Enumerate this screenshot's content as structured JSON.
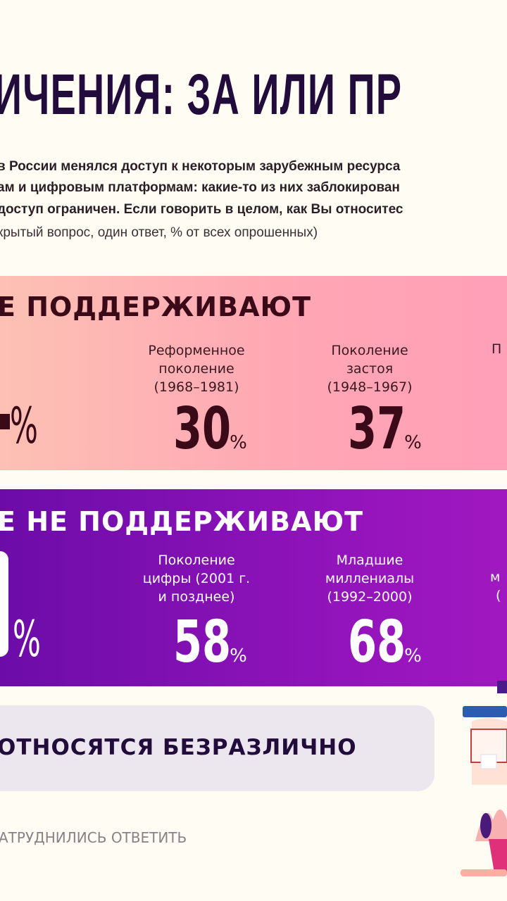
{
  "title": "ИЧЕНИЯ: ЗА ИЛИ ПР",
  "question": {
    "lines": [
      "в России менялся доступ к некоторым зарубежным ресурса",
      "ам и цифровым платформам: какие-то из них заблокирован",
      "доступ ограничен. Если говорить в целом, как Вы относитес"
    ],
    "note": "крытый вопрос, один ответ, % от всех опрошенных)"
  },
  "support": {
    "heading": "Е ПОДДЕРЖИВАЮТ",
    "left_pct": "%",
    "groups": [
      {
        "label": [
          "Реформенное",
          "поколение",
          "(1968–1981)"
        ],
        "value": "30",
        "pct": "%"
      },
      {
        "label": [
          "Поколение",
          "застоя",
          "(1948–1967)"
        ],
        "value": "37",
        "pct": "%"
      },
      {
        "label": [
          "П"
        ]
      }
    ]
  },
  "oppose": {
    "heading": "Е НЕ ПОДДЕРЖИВАЮТ",
    "left_pct": "%",
    "groups": [
      {
        "label": [
          "Поколение",
          "цифры (2001 г.",
          "и позднее)"
        ],
        "value": "58",
        "pct": "%"
      },
      {
        "label": [
          "Младшие",
          "миллениалы",
          "(1992–2000)"
        ],
        "value": "68",
        "pct": "%"
      },
      {
        "label": [
          "м",
          "("
        ]
      }
    ]
  },
  "indifferent": "ОТНОСЯТСЯ БЕЗРАЗЛИЧНО",
  "hard_to_say": "АТРУДНИЛИСЬ ОТВЕТИТЬ",
  "colors": {
    "pink": "#ffa6b4",
    "purple": "#8a12b8",
    "dark": "#220c3c"
  }
}
